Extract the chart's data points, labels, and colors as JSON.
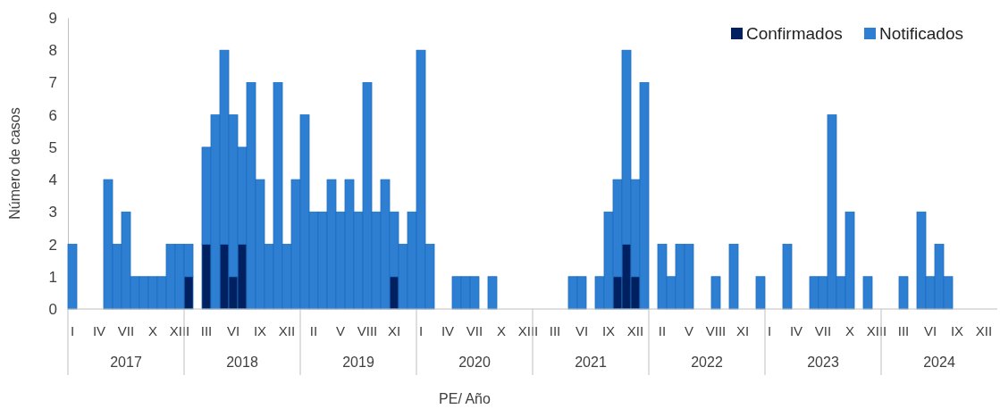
{
  "chart_data": {
    "type": "bar",
    "stacked": true,
    "xlabel": "PE/ Año",
    "ylabel": "Número de casos",
    "categories": [
      "I",
      null,
      null,
      "IV",
      null,
      null,
      "VII",
      null,
      null,
      "X",
      null,
      null,
      "XIII",
      null,
      null,
      "III",
      null,
      null,
      "VI",
      null,
      null,
      "IX",
      null,
      null,
      "XII",
      null,
      null,
      "II",
      null,
      null,
      "V",
      null,
      null,
      "VIII",
      null,
      null,
      "XI",
      null,
      null,
      "I",
      null,
      null,
      "IV",
      null,
      null,
      "VII",
      null,
      null,
      "X",
      null,
      null,
      "XIII",
      null,
      null,
      "III",
      null,
      null,
      "VI",
      null,
      null,
      "IX",
      null,
      null,
      "XII",
      null,
      null,
      "II",
      null,
      null,
      "V",
      null,
      null,
      "VIII",
      null,
      null,
      "XI",
      null,
      null,
      "I",
      null,
      null,
      "IV",
      null,
      null,
      "VII",
      null,
      null,
      "X",
      null,
      null,
      "XIII",
      null,
      null,
      "III",
      null,
      null,
      "VI",
      null,
      null,
      "IX",
      null,
      null,
      "XII",
      null
    ],
    "annotations": [
      "2017",
      "2018",
      "2019",
      "2020",
      "2021",
      "2022",
      "2023",
      "2024"
    ],
    "series": [
      {
        "name": "Confirmados",
        "color": "#002060",
        "values": [
          0,
          0,
          0,
          0,
          0,
          0,
          0,
          0,
          0,
          0,
          0,
          0,
          0,
          1,
          0,
          2,
          0,
          2,
          1,
          2,
          0,
          0,
          0,
          0,
          0,
          0,
          0,
          0,
          0,
          0,
          0,
          0,
          0,
          0,
          0,
          0,
          1,
          0,
          0,
          0,
          0,
          0,
          0,
          0,
          0,
          0,
          0,
          0,
          0,
          0,
          0,
          0,
          0,
          0,
          0,
          0,
          0,
          0,
          0,
          0,
          0,
          1,
          2,
          1,
          0,
          0,
          0,
          0,
          0,
          0,
          0,
          0,
          0,
          0,
          0,
          0,
          0,
          0,
          0,
          0,
          0,
          0,
          0,
          0,
          0,
          0,
          0,
          0,
          0,
          0,
          0,
          0,
          0,
          0,
          0,
          0,
          0,
          0,
          0,
          0,
          0,
          0,
          0,
          0
        ]
      },
      {
        "name": "Notificados",
        "color": "#2e7fd2",
        "values": [
          2,
          0,
          0,
          0,
          4,
          2,
          3,
          1,
          1,
          1,
          1,
          2,
          2,
          1,
          0,
          3,
          6,
          6,
          5,
          3,
          7,
          4,
          2,
          7,
          2,
          4,
          6,
          3,
          3,
          4,
          3,
          4,
          3,
          7,
          3,
          4,
          2,
          2,
          3,
          8,
          2,
          0,
          0,
          1,
          1,
          1,
          0,
          1,
          0,
          0,
          0,
          0,
          0,
          0,
          0,
          0,
          1,
          1,
          0,
          1,
          3,
          3,
          6,
          3,
          7,
          0,
          2,
          1,
          2,
          2,
          0,
          0,
          1,
          0,
          2,
          0,
          0,
          1,
          0,
          0,
          2,
          0,
          0,
          1,
          1,
          6,
          1,
          3,
          0,
          1,
          0,
          0,
          0,
          1,
          0,
          3,
          1,
          2,
          1,
          0,
          0,
          0,
          0,
          0
        ]
      }
    ],
    "ylim": [
      0,
      9
    ],
    "yticks": [
      0,
      1,
      2,
      3,
      4,
      5,
      6,
      7,
      8,
      9
    ],
    "legend": "top right"
  }
}
